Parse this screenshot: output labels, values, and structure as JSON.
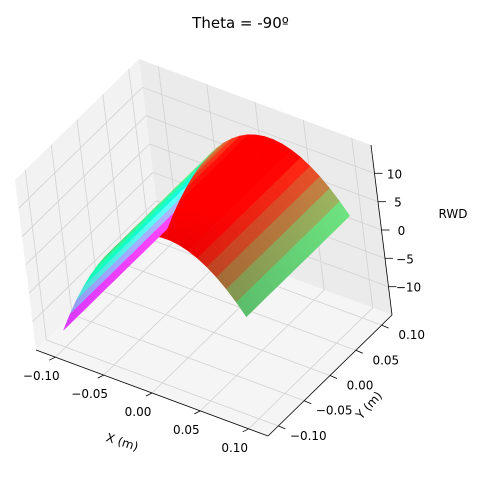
{
  "chart_data": {
    "type": "surface3d",
    "title": "Theta = -90º",
    "xlabel": "X (m)",
    "ylabel": "Y (m)",
    "zlabel": "RWD",
    "xlim": [
      -0.12,
      0.12
    ],
    "ylim": [
      -0.12,
      0.12
    ],
    "zlim": [
      -15,
      15
    ],
    "x_ticks": [
      -0.1,
      -0.05,
      0.0,
      0.05,
      0.1
    ],
    "x_tick_labels": [
      "−0.10",
      "−0.05",
      "0.00",
      "0.05",
      "0.10"
    ],
    "y_ticks": [
      -0.1,
      -0.05,
      0.0,
      0.05,
      0.1
    ],
    "y_tick_labels": [
      "−0.10",
      "−0.05",
      "0.00",
      "0.05",
      "0.10"
    ],
    "z_ticks": [
      -10,
      -5,
      0,
      5,
      10
    ],
    "z_tick_labels": [
      "−10",
      "−5",
      "0",
      "5",
      "10"
    ],
    "surface": {
      "x_range": [
        -0.1,
        0.1
      ],
      "y_range": [
        -0.1,
        0.1
      ],
      "z_values": {
        "x=-0.1,y=-0.1": -12,
        "x=-0.1,y=0.1": -12,
        "x=0.1,y=-0.1": 3,
        "x=0.1,y=0.1": 3,
        "x=0,y=0": 11
      },
      "colormap": "rainbow"
    },
    "grid": true
  }
}
